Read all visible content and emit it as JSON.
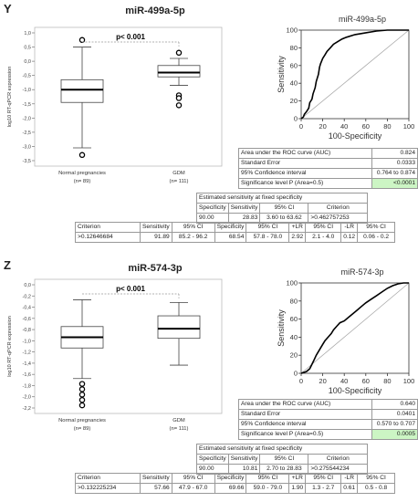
{
  "panels": [
    {
      "letter": "Y",
      "title": "miR-499a-5p",
      "boxplot": {
        "ylabel": "log10 RT-qPCR expression",
        "yticks": [
          "1,0",
          "0,5",
          "0,0",
          "-0,5",
          "-1,0",
          "-1,5",
          "-2,0",
          "-2,5",
          "-3,0",
          "-3,5"
        ],
        "ymin": -3.5,
        "ymax": 1.0,
        "significance": "p< 0.001",
        "groups": [
          {
            "name": "Normal pregnancies",
            "n": "(n= 89)",
            "whisker_low": -3.05,
            "q1": -1.45,
            "median": -1.0,
            "q3": -0.65,
            "whisker_high": 0.5,
            "outliers": [
              0.75,
              -3.3
            ]
          },
          {
            "name": "GDM",
            "n": "(n= 111)",
            "whisker_low": -0.85,
            "q1": -0.55,
            "median": -0.4,
            "q3": -0.15,
            "whisker_high": 0.1,
            "outliers": [
              0.3,
              -1.2,
              -1.3,
              -1.55
            ]
          }
        ]
      },
      "roc": {
        "title": "miR-499a-5p",
        "ylabel": "Sensitivity",
        "xlabel": "100-Specificity",
        "ticks": [
          "0",
          "20",
          "40",
          "60",
          "80",
          "100"
        ],
        "curve": [
          [
            0,
            0
          ],
          [
            2,
            2
          ],
          [
            3,
            5
          ],
          [
            5,
            8
          ],
          [
            7,
            12
          ],
          [
            8,
            18
          ],
          [
            10,
            22
          ],
          [
            11,
            28
          ],
          [
            13,
            35
          ],
          [
            14,
            42
          ],
          [
            16,
            50
          ],
          [
            17,
            58
          ],
          [
            18,
            62
          ],
          [
            20,
            68
          ],
          [
            22,
            72
          ],
          [
            24,
            76
          ],
          [
            27,
            80
          ],
          [
            30,
            84
          ],
          [
            34,
            87
          ],
          [
            38,
            90
          ],
          [
            42,
            92
          ],
          [
            50,
            95
          ],
          [
            60,
            97
          ],
          [
            70,
            99
          ],
          [
            80,
            100
          ],
          [
            100,
            100
          ]
        ]
      },
      "auc_table": [
        [
          "Area under the ROC curve (AUC)",
          "0.824"
        ],
        [
          "Standard Error",
          "0.0333"
        ],
        [
          "95% Confidence interval",
          "0.764 to 0.874"
        ],
        [
          "Significance level P (Area=0.5)",
          "<0.0001"
        ]
      ],
      "sens_table": {
        "title": "Estimated sensitivity at fixed specificity",
        "headers": [
          "Specificity",
          "Sensitivity",
          "95% CI",
          "Criterion"
        ],
        "row": [
          "90.00",
          "28.83",
          "3.60 to 63.62",
          ">0.462757253"
        ]
      },
      "criterion_table": {
        "headers": [
          "Criterion",
          "Sensitivity",
          "95% CI",
          "Specificity",
          "95% CI",
          "+LR",
          "95% CI",
          "-LR",
          "95% CI"
        ],
        "row": [
          ">0.12646684",
          "91.89",
          "85.2 - 96.2",
          "68.54",
          "57.8 - 78.0",
          "2.92",
          "2.1 - 4.0",
          "0.12",
          "0.06 - 0.2"
        ]
      }
    },
    {
      "letter": "Z",
      "title": "miR-574-3p",
      "boxplot": {
        "ylabel": "log10 RT-qPCR expression",
        "yticks": [
          "0,0",
          "-0,2",
          "-0,4",
          "-0,6",
          "-0,8",
          "-1,0",
          "-1,2",
          "-1,4",
          "-1,6",
          "-1,8",
          "-2,0",
          "-2,2"
        ],
        "ymin": -2.3,
        "ymax": 0.0,
        "significance": "p< 0.001",
        "groups": [
          {
            "name": "Normal pregnancies",
            "n": "(n= 89)",
            "whisker_low": -1.75,
            "q1": -1.18,
            "median": -0.98,
            "q3": -0.78,
            "whisker_high": -0.28,
            "outliers": [
              -1.85,
              -1.95,
              -2.05,
              -2.15,
              -2.25
            ]
          },
          {
            "name": "GDM",
            "n": "(n= 111)",
            "whisker_low": -1.5,
            "q1": -1.0,
            "median": -0.82,
            "q3": -0.58,
            "whisker_high": -0.33,
            "outliers": []
          }
        ]
      },
      "roc": {
        "title": "miR-574-3p",
        "ylabel": "Sensitivity",
        "xlabel": "100-Specificity",
        "ticks": [
          "0",
          "20",
          "40",
          "60",
          "80",
          "100"
        ],
        "curve": [
          [
            0,
            0
          ],
          [
            5,
            2
          ],
          [
            8,
            5
          ],
          [
            10,
            10
          ],
          [
            12,
            15
          ],
          [
            14,
            20
          ],
          [
            16,
            24
          ],
          [
            18,
            28
          ],
          [
            20,
            32
          ],
          [
            22,
            36
          ],
          [
            25,
            40
          ],
          [
            28,
            44
          ],
          [
            30,
            48
          ],
          [
            33,
            52
          ],
          [
            36,
            56
          ],
          [
            40,
            58
          ],
          [
            44,
            62
          ],
          [
            48,
            66
          ],
          [
            52,
            70
          ],
          [
            56,
            74
          ],
          [
            60,
            78
          ],
          [
            65,
            82
          ],
          [
            70,
            86
          ],
          [
            75,
            90
          ],
          [
            80,
            94
          ],
          [
            85,
            97
          ],
          [
            90,
            99
          ],
          [
            95,
            100
          ],
          [
            100,
            100
          ]
        ]
      },
      "auc_table": [
        [
          "Area under the ROC curve (AUC)",
          "0.640"
        ],
        [
          "Standard Error",
          "0.0401"
        ],
        [
          "95% Confidence interval",
          "0.570 to 0.707"
        ],
        [
          "Significance level P (Area=0.5)",
          "0.0005"
        ]
      ],
      "sens_table": {
        "title": "Estimated sensitivity at fixed specificity",
        "headers": [
          "Specificity",
          "Sensitivity",
          "95% CI",
          "Criterion"
        ],
        "row": [
          "90.00",
          "10.81",
          "2.70 to 28.83",
          ">0.275544234"
        ]
      },
      "criterion_table": {
        "headers": [
          "Criterion",
          "Sensitivity",
          "95% CI",
          "Specificity",
          "95% CI",
          "+LR",
          "95% CI",
          "-LR",
          "95% CI"
        ],
        "row": [
          ">0.132225234",
          "57.66",
          "47.9 - 67.0",
          "69.66",
          "59.0 - 79.0",
          "1.90",
          "1.3 - 2.7",
          "0.61",
          "0.5 - 0.8"
        ]
      }
    }
  ],
  "chart_data": [
    {
      "type": "box",
      "title": "miR-499a-5p",
      "ylabel": "log10 RT-qPCR expression",
      "ylim": [
        -3.5,
        1.0
      ],
      "categories": [
        "Normal pregnancies",
        "GDM"
      ],
      "medians": [
        -1.0,
        -0.4
      ],
      "q1": [
        -1.45,
        -0.55
      ],
      "q3": [
        -0.65,
        -0.15
      ],
      "annotation": "p< 0.001"
    },
    {
      "type": "line",
      "title": "miR-499a-5p",
      "xlabel": "100-Specificity",
      "ylabel": "Sensitivity",
      "xlim": [
        0,
        100
      ],
      "ylim": [
        0,
        100
      ],
      "auc": 0.824
    },
    {
      "type": "box",
      "title": "miR-574-3p",
      "ylabel": "log10 RT-qPCR expression",
      "ylim": [
        -2.3,
        0.0
      ],
      "categories": [
        "Normal pregnancies",
        "GDM"
      ],
      "medians": [
        -0.98,
        -0.82
      ],
      "q1": [
        -1.18,
        -1.0
      ],
      "q3": [
        -0.78,
        -0.58
      ],
      "annotation": "p< 0.001"
    },
    {
      "type": "line",
      "title": "miR-574-3p",
      "xlabel": "100-Specificity",
      "ylabel": "Sensitivity",
      "xlim": [
        0,
        100
      ],
      "ylim": [
        0,
        100
      ],
      "auc": 0.64
    }
  ]
}
